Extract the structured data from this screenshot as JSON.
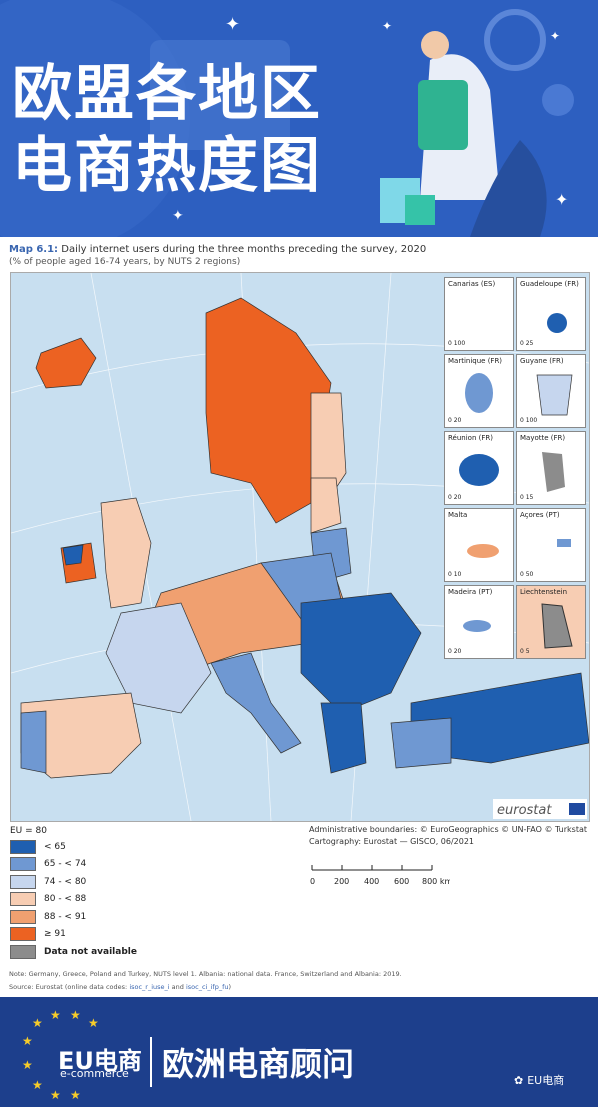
{
  "banner": {
    "title_line1": "欧盟各地区",
    "title_line2": "电商热度图"
  },
  "map": {
    "title_bold": "Map 6.1:",
    "title_rest": " Daily internet users during the three months preceding the survey, 2020",
    "subtitle": "(% of people aged 16-74 years, by NUTS 2 regions)",
    "brand": "eurostat"
  },
  "insets": [
    {
      "name": "Canarias (ES)",
      "scale": "0  100"
    },
    {
      "name": "Guadeloupe (FR)",
      "scale": "0  25"
    },
    {
      "name": "Martinique (FR)",
      "scale": "0  20"
    },
    {
      "name": "Guyane (FR)",
      "scale": "0  100"
    },
    {
      "name": "Réunion (FR)",
      "scale": "0  20"
    },
    {
      "name": "Mayotte (FR)",
      "scale": "0  15"
    },
    {
      "name": "Malta",
      "scale": "0  10"
    },
    {
      "name": "Açores (PT)",
      "scale": "0  50"
    },
    {
      "name": "Madeira (PT)",
      "scale": "0  20"
    },
    {
      "name": "Liechtenstein",
      "scale": "0  5"
    }
  ],
  "legend": {
    "heading": "EU = 80",
    "items": [
      {
        "label": "< 65",
        "color": "#1f5fb0"
      },
      {
        "label": "65 - < 74",
        "color": "#6f98d2"
      },
      {
        "label": "74 - < 80",
        "color": "#c6d6ee"
      },
      {
        "label": "80 - < 88",
        "color": "#f7cdb3"
      },
      {
        "label": "88 - < 91",
        "color": "#f0a070"
      },
      {
        "label": "≥ 91",
        "color": "#ec6222"
      },
      {
        "label": "Data not available",
        "color": "#8c8c8c"
      }
    ]
  },
  "credits": {
    "line1": "Administrative boundaries: © EuroGeographics © UN-FAO © Turkstat",
    "line2": "Cartography: Eurostat — GISCO, 06/2021"
  },
  "scalebar": {
    "ticks": [
      "0",
      "200",
      "400",
      "600",
      "800 km"
    ]
  },
  "note": "Note: Germany, Greece, Poland and Turkey, NUTS level 1. Albania: national data. France, Switzerland and Albania: 2019.",
  "source": {
    "prefix": "Source: Eurostat (online data codes: ",
    "code1": "isoc_r_iuse_i",
    "mid": " and ",
    "code2": "isoc_ci_ifp_fu",
    "suffix": ")"
  },
  "footer": {
    "eu": "EU电商",
    "ecommerce": "e-commerce",
    "name": "欧洲电商顾问",
    "wechat": "EU电商"
  }
}
